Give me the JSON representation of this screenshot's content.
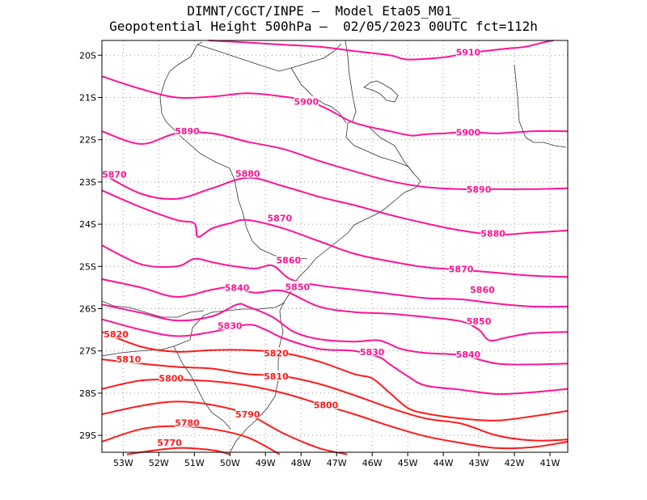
{
  "chart_data": {
    "type": "line",
    "title_line1": "DIMNT/CGCT/INPE –  Model Eta05_M01_",
    "title_line2": "Geopotential Height 500hPa –  02/05/2023 00UTC fct=112h",
    "x_range": [
      -53.6,
      -40.5
    ],
    "y_range": [
      -29.4,
      -19.65
    ],
    "x_ticks": [
      {
        "value": -53,
        "label": "53W"
      },
      {
        "value": -52,
        "label": "52W"
      },
      {
        "value": -51,
        "label": "51W"
      },
      {
        "value": -50,
        "label": "50W"
      },
      {
        "value": -49,
        "label": "49W"
      },
      {
        "value": -48,
        "label": "48W"
      },
      {
        "value": -47,
        "label": "47W"
      },
      {
        "value": -46,
        "label": "46W"
      },
      {
        "value": -45,
        "label": "45W"
      },
      {
        "value": -44,
        "label": "44W"
      },
      {
        "value": -43,
        "label": "43W"
      },
      {
        "value": -42,
        "label": "42W"
      },
      {
        "value": -41,
        "label": "41W"
      }
    ],
    "y_ticks": [
      {
        "value": -20,
        "label": "20S"
      },
      {
        "value": -21,
        "label": "21S"
      },
      {
        "value": -22,
        "label": "22S"
      },
      {
        "value": -23,
        "label": "23S"
      },
      {
        "value": -24,
        "label": "24S"
      },
      {
        "value": -25,
        "label": "25S"
      },
      {
        "value": -26,
        "label": "26S"
      },
      {
        "value": -27,
        "label": "27S"
      },
      {
        "value": -28,
        "label": "28S"
      },
      {
        "value": -29,
        "label": "29S"
      }
    ],
    "grid": true,
    "grid_style": "dotted",
    "contours": [
      {
        "level": 5910,
        "color": "#ff1493",
        "points": [
          [
            -50.6,
            -19.65
          ],
          [
            -49.5,
            -19.7
          ],
          [
            -48.5,
            -19.75
          ],
          [
            -47.5,
            -19.8
          ],
          [
            -46.5,
            -19.9
          ],
          [
            -45.5,
            -20.0
          ],
          [
            -45,
            -20.1
          ],
          [
            -44,
            -20.05
          ],
          [
            -43.3,
            -19.95
          ],
          [
            -42.3,
            -19.85
          ],
          [
            -41.7,
            -19.8
          ],
          [
            -41.2,
            -19.7
          ],
          [
            -40.9,
            -19.65
          ]
        ],
        "labels": [
          {
            "text": "5910",
            "x": -43.3,
            "y": -19.93
          }
        ]
      },
      {
        "level": 5900,
        "color": "#ff1493",
        "points": [
          [
            -53.6,
            -20.5
          ],
          [
            -52.5,
            -20.8
          ],
          [
            -51.5,
            -21.0
          ],
          [
            -50.5,
            -20.98
          ],
          [
            -49.5,
            -20.9
          ],
          [
            -48.5,
            -20.98
          ],
          [
            -47.8,
            -21.08
          ],
          [
            -47.2,
            -21.3
          ],
          [
            -46.5,
            -21.6
          ],
          [
            -45.5,
            -21.8
          ],
          [
            -44.9,
            -21.9
          ],
          [
            -44.5,
            -21.87
          ],
          [
            -44,
            -21.85
          ],
          [
            -43.3,
            -21.82
          ],
          [
            -42.5,
            -21.85
          ],
          [
            -41.5,
            -21.8
          ],
          [
            -40.5,
            -21.8
          ]
        ],
        "labels": [
          {
            "text": "5900",
            "x": -47.85,
            "y": -21.1
          },
          {
            "text": "5900",
            "x": -43.3,
            "y": -21.82
          }
        ]
      },
      {
        "level": 5890,
        "color": "#ff1493",
        "points": [
          [
            -53.6,
            -21.8
          ],
          [
            -52.5,
            -22.1
          ],
          [
            -51.5,
            -21.85
          ],
          [
            -50.5,
            -21.85
          ],
          [
            -49.5,
            -22.05
          ],
          [
            -48.5,
            -22.22
          ],
          [
            -47.5,
            -22.5
          ],
          [
            -46.5,
            -22.75
          ],
          [
            -45.5,
            -22.98
          ],
          [
            -44.5,
            -23.12
          ],
          [
            -43.5,
            -23.17
          ],
          [
            -42.5,
            -23.17
          ],
          [
            -41.5,
            -23.17
          ],
          [
            -40.5,
            -23.15
          ]
        ],
        "labels": [
          {
            "text": "5890",
            "x": -51.2,
            "y": -21.8
          },
          {
            "text": "5890",
            "x": -43.0,
            "y": -23.17
          }
        ]
      },
      {
        "level": 5880,
        "color": "#ff1493",
        "points": [
          [
            -53.6,
            -22.8
          ],
          [
            -52.5,
            -23.28
          ],
          [
            -51.5,
            -23.4
          ],
          [
            -50.5,
            -23.15
          ],
          [
            -49.5,
            -22.9
          ],
          [
            -48.5,
            -23.1
          ],
          [
            -47.5,
            -23.35
          ],
          [
            -46.5,
            -23.55
          ],
          [
            -45.5,
            -23.78
          ],
          [
            -44.5,
            -23.98
          ],
          [
            -43.5,
            -24.15
          ],
          [
            -42.5,
            -24.25
          ],
          [
            -41.5,
            -24.2
          ],
          [
            -40.5,
            -24.15
          ]
        ],
        "labels": [
          {
            "text": "5880",
            "x": -49.5,
            "y": -22.8
          },
          {
            "text": "5880",
            "x": -42.6,
            "y": -24.22
          }
        ]
      },
      {
        "level": 5870,
        "color": "#ff1493",
        "points": [
          [
            -53.6,
            -23.2
          ],
          [
            -52.5,
            -23.6
          ],
          [
            -51.5,
            -23.9
          ],
          [
            -51,
            -23.98
          ],
          [
            -50.9,
            -24.3
          ],
          [
            -50.5,
            -24.1
          ],
          [
            -50,
            -23.98
          ],
          [
            -49.5,
            -23.9
          ],
          [
            -48.5,
            -24.1
          ],
          [
            -47.5,
            -24.4
          ],
          [
            -46.5,
            -24.7
          ],
          [
            -45.5,
            -24.88
          ],
          [
            -44.5,
            -25.02
          ],
          [
            -43.5,
            -25.08
          ],
          [
            -42.5,
            -25.15
          ],
          [
            -41.5,
            -25.22
          ],
          [
            -40.5,
            -25.25
          ]
        ],
        "labels": [
          {
            "text": "5870",
            "x": -53.25,
            "y": -22.82
          },
          {
            "text": "5870",
            "x": -48.6,
            "y": -23.85
          },
          {
            "text": "5870",
            "x": -43.5,
            "y": -25.06
          }
        ]
      },
      {
        "level": 5860,
        "color": "#ff1493",
        "points": [
          [
            -53.6,
            -24.5
          ],
          [
            -52.5,
            -24.95
          ],
          [
            -51.5,
            -25.0
          ],
          [
            -51,
            -24.82
          ],
          [
            -50.5,
            -24.9
          ],
          [
            -50,
            -24.98
          ],
          [
            -49.3,
            -25.05
          ],
          [
            -48.8,
            -24.98
          ],
          [
            -48.3,
            -25.3
          ],
          [
            -47.5,
            -25.45
          ],
          [
            -46.5,
            -25.55
          ],
          [
            -45.5,
            -25.65
          ],
          [
            -44.5,
            -25.75
          ],
          [
            -43.5,
            -25.78
          ],
          [
            -42.5,
            -25.88
          ],
          [
            -41.5,
            -25.95
          ],
          [
            -40.5,
            -25.95
          ]
        ],
        "labels": [
          {
            "text": "5860",
            "x": -48.35,
            "y": -24.85
          },
          {
            "text": "5860",
            "x": -42.9,
            "y": -25.55
          }
        ]
      },
      {
        "level": 5850,
        "color": "#ff1493",
        "points": [
          [
            -53.6,
            -25.3
          ],
          [
            -52.5,
            -25.5
          ],
          [
            -51.5,
            -25.72
          ],
          [
            -50.5,
            -25.55
          ],
          [
            -50,
            -25.5
          ],
          [
            -49.3,
            -25.62
          ],
          [
            -48.5,
            -25.58
          ],
          [
            -47.5,
            -25.95
          ],
          [
            -46.5,
            -26.08
          ],
          [
            -45.5,
            -26.12
          ],
          [
            -44.5,
            -26.2
          ],
          [
            -43.5,
            -26.3
          ],
          [
            -43,
            -26.5
          ],
          [
            -42.7,
            -26.75
          ],
          [
            -42.2,
            -26.68
          ],
          [
            -41.5,
            -26.58
          ],
          [
            -40.5,
            -26.55
          ]
        ],
        "labels": [
          {
            "text": "5850",
            "x": -48.1,
            "y": -25.48
          },
          {
            "text": "5850",
            "x": -43.0,
            "y": -26.3
          }
        ]
      },
      {
        "level": 5840,
        "color": "#ff1493",
        "points": [
          [
            -53.6,
            -25.9
          ],
          [
            -52.5,
            -26.1
          ],
          [
            -51.5,
            -26.28
          ],
          [
            -50.5,
            -26.18
          ],
          [
            -49.8,
            -25.9
          ],
          [
            -49.5,
            -25.95
          ],
          [
            -48.8,
            -26.2
          ],
          [
            -48.2,
            -26.55
          ],
          [
            -47.5,
            -26.72
          ],
          [
            -46.5,
            -26.78
          ],
          [
            -45.8,
            -26.75
          ],
          [
            -45.2,
            -26.95
          ],
          [
            -44.5,
            -27.05
          ],
          [
            -43.5,
            -27.1
          ],
          [
            -42.5,
            -27.3
          ],
          [
            -41.5,
            -27.32
          ],
          [
            -40.5,
            -27.3
          ]
        ],
        "labels": [
          {
            "text": "5840",
            "x": -49.8,
            "y": -25.5
          },
          {
            "text": "5840",
            "x": -43.3,
            "y": -27.08
          }
        ]
      },
      {
        "level": 5830,
        "color": "#ff1493",
        "points": [
          [
            -53.6,
            -26.25
          ],
          [
            -52.5,
            -26.5
          ],
          [
            -51.5,
            -26.65
          ],
          [
            -50.5,
            -26.55
          ],
          [
            -49.5,
            -26.38
          ],
          [
            -49.0,
            -26.5
          ],
          [
            -48.5,
            -26.7
          ],
          [
            -47.5,
            -26.95
          ],
          [
            -46.5,
            -27.0
          ],
          [
            -45.8,
            -27.15
          ],
          [
            -45.5,
            -27.32
          ],
          [
            -45.0,
            -27.6
          ],
          [
            -44.5,
            -27.82
          ],
          [
            -43.5,
            -27.92
          ],
          [
            -42.5,
            -28.02
          ],
          [
            -41.5,
            -27.98
          ],
          [
            -40.5,
            -27.9
          ]
        ],
        "labels": [
          {
            "text": "5830",
            "x": -50.0,
            "y": -26.4
          },
          {
            "text": "5830",
            "x": -46.0,
            "y": -27.02
          }
        ]
      },
      {
        "level": 5820,
        "color": "#ff1a1a",
        "points": [
          [
            -53.6,
            -26.55
          ],
          [
            -52.5,
            -26.9
          ],
          [
            -51.5,
            -27.02
          ],
          [
            -50.5,
            -26.98
          ],
          [
            -49.5,
            -26.98
          ],
          [
            -48.5,
            -27.05
          ],
          [
            -47.5,
            -27.25
          ],
          [
            -46.5,
            -27.55
          ],
          [
            -46.0,
            -27.65
          ],
          [
            -45.5,
            -28.0
          ],
          [
            -45.0,
            -28.35
          ],
          [
            -44.5,
            -28.48
          ],
          [
            -43.5,
            -28.6
          ],
          [
            -42.5,
            -28.65
          ],
          [
            -41.5,
            -28.55
          ],
          [
            -40.5,
            -28.42
          ]
        ],
        "labels": [
          {
            "text": "5820",
            "x": -53.2,
            "y": -26.6
          },
          {
            "text": "5820",
            "x": -48.7,
            "y": -27.05
          }
        ]
      },
      {
        "level": 5810,
        "color": "#ff1a1a",
        "points": [
          [
            -53.6,
            -27.2
          ],
          [
            -52.5,
            -27.3
          ],
          [
            -51.5,
            -27.38
          ],
          [
            -50.5,
            -27.42
          ],
          [
            -49.5,
            -27.55
          ],
          [
            -48.5,
            -27.6
          ],
          [
            -47.5,
            -27.78
          ],
          [
            -46.5,
            -28.05
          ],
          [
            -45.5,
            -28.35
          ],
          [
            -44.5,
            -28.6
          ],
          [
            -43.5,
            -28.72
          ],
          [
            -42.5,
            -29.0
          ],
          [
            -41.5,
            -29.12
          ],
          [
            -40.5,
            -29.1
          ]
        ],
        "labels": [
          {
            "text": "5810",
            "x": -52.85,
            "y": -27.2
          },
          {
            "text": "5810",
            "x": -48.7,
            "y": -27.6
          }
        ]
      },
      {
        "level": 5800,
        "color": "#ff1a1a",
        "points": [
          [
            -53.6,
            -27.9
          ],
          [
            -52.5,
            -27.7
          ],
          [
            -51.5,
            -27.68
          ],
          [
            -50.5,
            -27.72
          ],
          [
            -49.5,
            -27.82
          ],
          [
            -48.5,
            -28.0
          ],
          [
            -47.5,
            -28.25
          ],
          [
            -46.5,
            -28.5
          ],
          [
            -45.5,
            -28.78
          ],
          [
            -44.5,
            -29.02
          ],
          [
            -43.5,
            -29.18
          ],
          [
            -42.5,
            -29.3
          ],
          [
            -41.5,
            -29.28
          ],
          [
            -40.5,
            -29.15
          ]
        ],
        "labels": [
          {
            "text": "5800",
            "x": -51.65,
            "y": -27.65
          },
          {
            "text": "5800",
            "x": -47.3,
            "y": -28.28
          }
        ]
      },
      {
        "level": 5790,
        "color": "#ff1a1a",
        "points": [
          [
            -53.6,
            -28.5
          ],
          [
            -52.5,
            -28.3
          ],
          [
            -51.5,
            -28.2
          ],
          [
            -50.5,
            -28.28
          ],
          [
            -49.5,
            -28.5
          ],
          [
            -48.5,
            -28.95
          ],
          [
            -47.5,
            -29.3
          ],
          [
            -46.7,
            -29.45
          ]
        ],
        "labels": [
          {
            "text": "5790",
            "x": -49.5,
            "y": -28.5
          }
        ]
      },
      {
        "level": 5780,
        "color": "#ff1a1a",
        "points": [
          [
            -53.6,
            -29.15
          ],
          [
            -52.5,
            -28.85
          ],
          [
            -51.5,
            -28.78
          ],
          [
            -50.5,
            -28.85
          ],
          [
            -49.5,
            -29.05
          ],
          [
            -48.6,
            -29.45
          ]
        ],
        "labels": [
          {
            "text": "5780",
            "x": -51.2,
            "y": -28.7
          }
        ]
      },
      {
        "level": 5770,
        "color": "#ff1a1a",
        "points": [
          [
            -52.9,
            -29.45
          ],
          [
            -51.5,
            -29.3
          ],
          [
            -50.5,
            -29.35
          ],
          [
            -50.0,
            -29.45
          ]
        ],
        "labels": [
          {
            "text": "5770",
            "x": -51.7,
            "y": -29.17
          }
        ]
      }
    ]
  }
}
